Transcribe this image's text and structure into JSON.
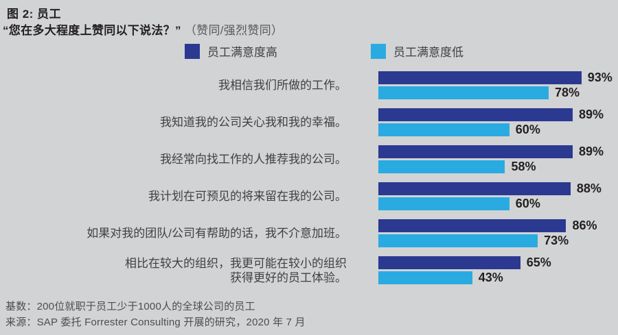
{
  "title": "图 2: 员工",
  "subtitle": {
    "quote": "“您在多大程度上赞同以下说法？”",
    "note": "（赞同/强烈赞同）"
  },
  "legend": {
    "high": "员工满意度高",
    "low": "员工满意度低"
  },
  "colors": {
    "high": "#2B3990",
    "low": "#29ABE2",
    "background": "#D1D3D4"
  },
  "chart_data": {
    "type": "bar",
    "orientation": "horizontal",
    "title": "图 2: 员工",
    "question": "您在多大程度上赞同以下说法？（赞同/强烈赞同）",
    "legend_position": "top",
    "xlim": [
      0,
      100
    ],
    "value_suffix": "%",
    "grid": false,
    "categories": [
      "我相信我们所做的工作。",
      "我知道我的公司关心我和我的幸福。",
      "我经常向找工作的人推荐我的公司。",
      "我计划在可预见的将来留在我的公司。",
      "如果对我的团队/公司有帮助的话，我不介意加班。",
      "相比在较大的组织，我更可能在较小的组织\n获得更好的员工体验。"
    ],
    "series": [
      {
        "name": "员工满意度高",
        "color": "#2B3990",
        "values": [
          93,
          89,
          89,
          88,
          86,
          65
        ],
        "labels": [
          "93%",
          "89%",
          "89%",
          "88%",
          "86%",
          "65%"
        ]
      },
      {
        "name": "员工满意度低",
        "color": "#29ABE2",
        "values": [
          78,
          60,
          58,
          60,
          73,
          43
        ],
        "labels": [
          "78%",
          "60%",
          "58%",
          "60%",
          "73%",
          "43%"
        ]
      }
    ]
  },
  "footer": {
    "base": "基数：200位就职于员工少于1000人的全球公司的员工",
    "source": "来源：SAP 委托 Forrester Consulting 开展的研究，2020 年 7 月"
  }
}
